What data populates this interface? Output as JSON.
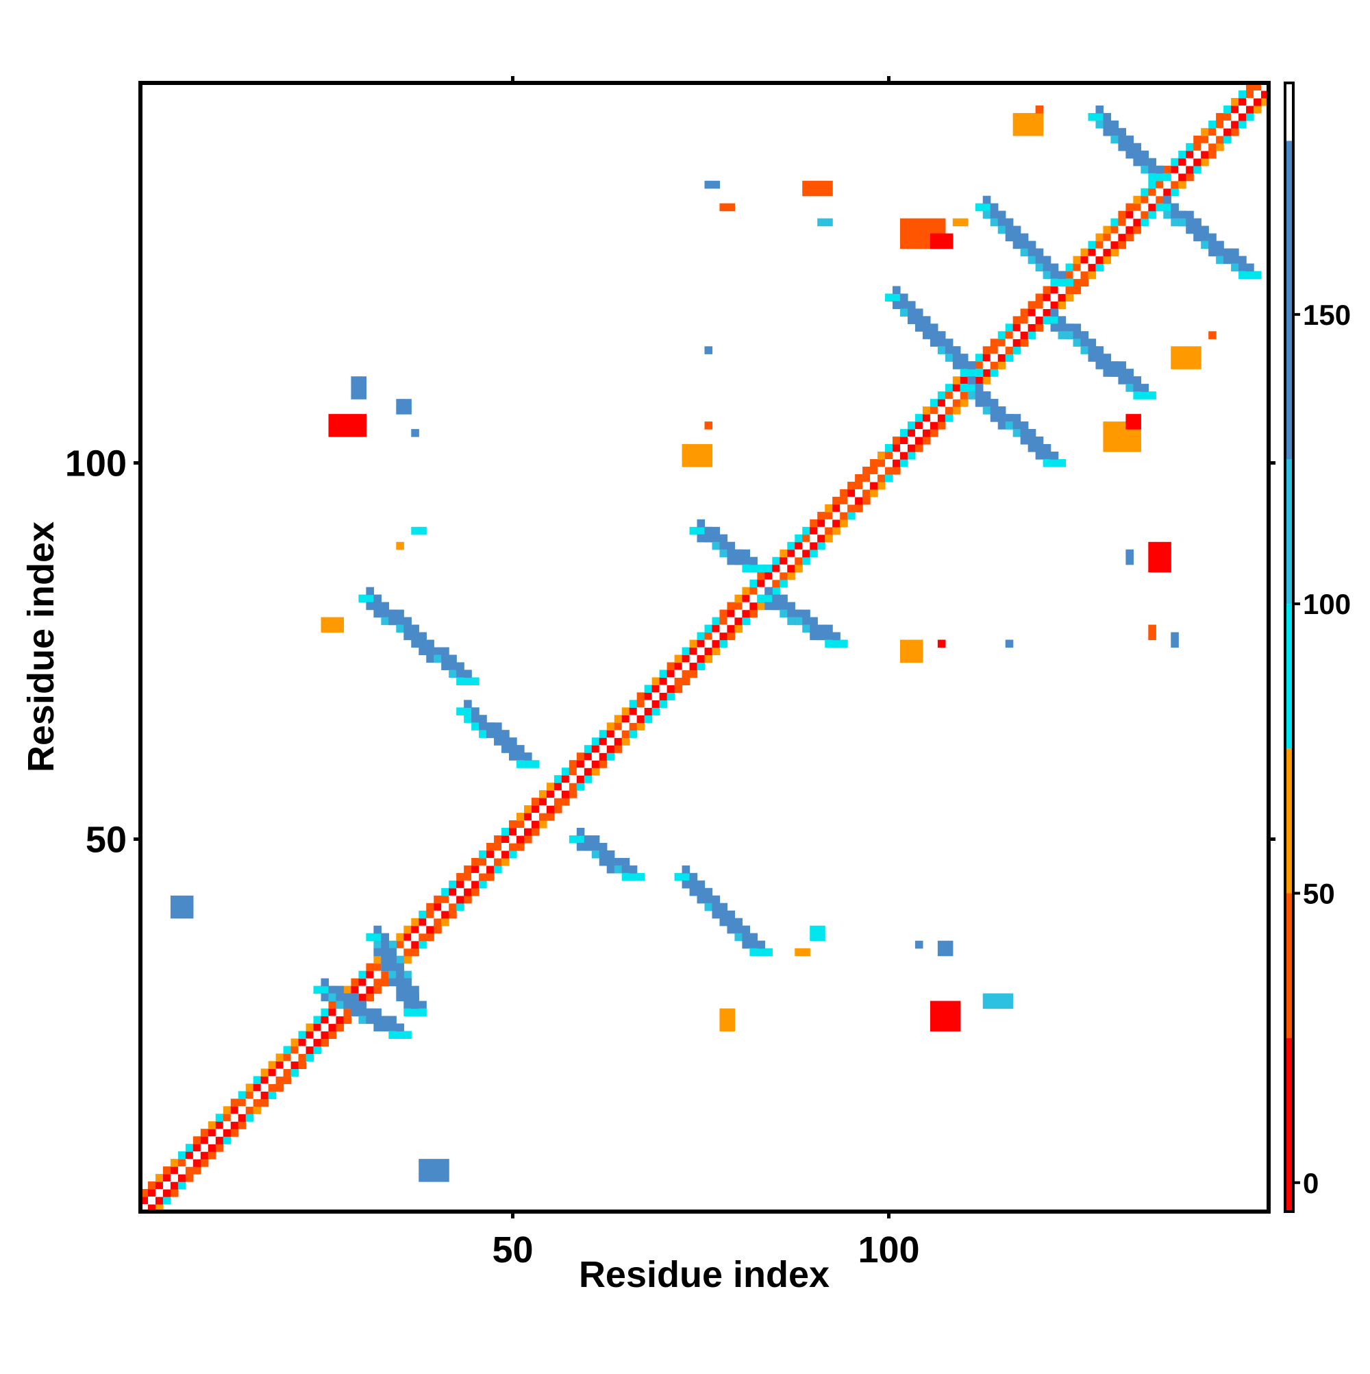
{
  "chart_data": {
    "type": "heatmap",
    "title": "",
    "xlabel": "Residue index",
    "ylabel": "Residue index",
    "x_range": [
      1,
      150
    ],
    "y_range": [
      1,
      150
    ],
    "x_ticks": [
      50,
      100
    ],
    "x_tick_labels": [
      "50",
      "100"
    ],
    "y_ticks": [
      50,
      100
    ],
    "y_tick_labels": [
      "50",
      "100"
    ],
    "grid": false,
    "legend": "colorbar-right",
    "colorbar": {
      "ticks": [
        0,
        50,
        100,
        150
      ],
      "tick_labels": [
        "0",
        "50",
        "100",
        "150"
      ],
      "range": [
        -5,
        190
      ],
      "bins": [
        {
          "from": -5,
          "to": 25,
          "color": "#ff0000"
        },
        {
          "from": 25,
          "to": 50,
          "color": "#ff5500"
        },
        {
          "from": 50,
          "to": 75,
          "color": "#ff9900"
        },
        {
          "from": 75,
          "to": 100,
          "color": "#00e5ee"
        },
        {
          "from": 100,
          "to": 125,
          "color": "#2ec0e0"
        },
        {
          "from": 125,
          "to": 180,
          "color": "#4a8ac8"
        },
        {
          "from": 180,
          "to": 190,
          "color": "#ffffff"
        }
      ]
    },
    "colors": {
      "near": "#ff0000",
      "mid": "#ff6a00",
      "medium": "#ff9900",
      "cyan": "#00e5ee",
      "sky": "#29b6e0",
      "steel": "#4a8ac8"
    },
    "diagonal": {
      "from": 1,
      "to": 150,
      "value_band": [
        0,
        70
      ]
    },
    "contact_segments": [
      {
        "x": [
          25,
          35
        ],
        "y": [
          30,
          24
        ],
        "value": 140
      },
      {
        "x": [
          32,
          37
        ],
        "y": [
          37,
          27
        ],
        "value": 140
      },
      {
        "x": [
          31,
          44
        ],
        "y": [
          82,
          71
        ],
        "value": 130
      },
      {
        "x": [
          44,
          52
        ],
        "y": [
          67,
          60
        ],
        "value": 125
      },
      {
        "x": [
          59,
          66
        ],
        "y": [
          50,
          45
        ],
        "value": 135
      },
      {
        "x": [
          73,
          83
        ],
        "y": [
          45,
          35
        ],
        "value": 135
      },
      {
        "x": [
          75,
          82
        ],
        "y": [
          91,
          86
        ],
        "value": 140
      },
      {
        "x": [
          84,
          93
        ],
        "y": [
          82,
          76
        ],
        "value": 140
      },
      {
        "x": [
          101,
          111
        ],
        "y": [
          122,
          112
        ],
        "value": 140
      },
      {
        "x": [
          111,
          122
        ],
        "y": [
          110,
          100
        ],
        "value": 140
      },
      {
        "x": [
          113,
          123
        ],
        "y": [
          134,
          124
        ],
        "value": 140
      },
      {
        "x": [
          122,
          134
        ],
        "y": [
          119,
          109
        ],
        "value": 140
      },
      {
        "x": [
          128,
          136
        ],
        "y": [
          146,
          138
        ],
        "value": 140
      },
      {
        "x": [
          137,
          148
        ],
        "y": [
          134,
          125
        ],
        "value": 140
      }
    ],
    "contact_patches": [
      {
        "x": 5,
        "y": 40,
        "w": 3,
        "h": 3,
        "value": 140
      },
      {
        "x": 38,
        "y": 5,
        "w": 4,
        "h": 3,
        "value": 140
      },
      {
        "x": 26,
        "y": 104,
        "w": 5,
        "h": 3,
        "value": 10
      },
      {
        "x": 29,
        "y": 109,
        "w": 2,
        "h": 3,
        "value": 140
      },
      {
        "x": 35,
        "y": 107,
        "w": 2,
        "h": 2,
        "value": 130
      },
      {
        "x": 37,
        "y": 104,
        "w": 1,
        "h": 1,
        "value": 130
      },
      {
        "x": 37,
        "y": 91,
        "w": 2,
        "h": 1,
        "value": 90
      },
      {
        "x": 35,
        "y": 89,
        "w": 1,
        "h": 1,
        "value": 50
      },
      {
        "x": 25,
        "y": 78,
        "w": 3,
        "h": 2,
        "value": 50
      },
      {
        "x": 73,
        "y": 100,
        "w": 4,
        "h": 3,
        "value": 60
      },
      {
        "x": 76,
        "y": 105,
        "w": 1,
        "h": 1,
        "value": 40
      },
      {
        "x": 76,
        "y": 115,
        "w": 1,
        "h": 1,
        "value": 140
      },
      {
        "x": 76,
        "y": 137,
        "w": 2,
        "h": 1,
        "value": 140
      },
      {
        "x": 78,
        "y": 134,
        "w": 2,
        "h": 1,
        "value": 40
      },
      {
        "x": 89,
        "y": 136,
        "w": 4,
        "h": 2,
        "value": 30
      },
      {
        "x": 91,
        "y": 132,
        "w": 2,
        "h": 1,
        "value": 100
      },
      {
        "x": 102,
        "y": 74,
        "w": 3,
        "h": 3,
        "value": 50
      },
      {
        "x": 107,
        "y": 76,
        "w": 1,
        "h": 1,
        "value": 20
      },
      {
        "x": 116,
        "y": 76,
        "w": 1,
        "h": 1,
        "value": 140
      },
      {
        "x": 90,
        "y": 37,
        "w": 2,
        "h": 2,
        "value": 95
      },
      {
        "x": 88,
        "y": 35,
        "w": 2,
        "h": 1,
        "value": 50
      },
      {
        "x": 104,
        "y": 36,
        "w": 1,
        "h": 1,
        "value": 130
      },
      {
        "x": 107,
        "y": 35,
        "w": 2,
        "h": 2,
        "value": 140
      },
      {
        "x": 113,
        "y": 28,
        "w": 4,
        "h": 2,
        "value": 110
      },
      {
        "x": 106,
        "y": 25,
        "w": 4,
        "h": 4,
        "value": 10
      },
      {
        "x": 78,
        "y": 25,
        "w": 2,
        "h": 3,
        "value": 50
      },
      {
        "x": 117,
        "y": 144,
        "w": 4,
        "h": 3,
        "value": 50
      },
      {
        "x": 120,
        "y": 147,
        "w": 1,
        "h": 1,
        "value": 40
      },
      {
        "x": 102,
        "y": 129,
        "w": 6,
        "h": 4,
        "value": 45
      },
      {
        "x": 106,
        "y": 129,
        "w": 3,
        "h": 2,
        "value": 10
      },
      {
        "x": 109,
        "y": 132,
        "w": 2,
        "h": 1,
        "value": 50
      },
      {
        "x": 138,
        "y": 113,
        "w": 4,
        "h": 3,
        "value": 60
      },
      {
        "x": 143,
        "y": 117,
        "w": 1,
        "h": 1,
        "value": 40
      },
      {
        "x": 129,
        "y": 102,
        "w": 5,
        "h": 4,
        "value": 50
      },
      {
        "x": 132,
        "y": 105,
        "w": 2,
        "h": 2,
        "value": 10
      },
      {
        "x": 132,
        "y": 87,
        "w": 1,
        "h": 2,
        "value": 130
      },
      {
        "x": 135,
        "y": 86,
        "w": 3,
        "h": 4,
        "value": 10
      },
      {
        "x": 135,
        "y": 77,
        "w": 1,
        "h": 2,
        "value": 45
      },
      {
        "x": 138,
        "y": 76,
        "w": 1,
        "h": 2,
        "value": 140
      }
    ]
  }
}
